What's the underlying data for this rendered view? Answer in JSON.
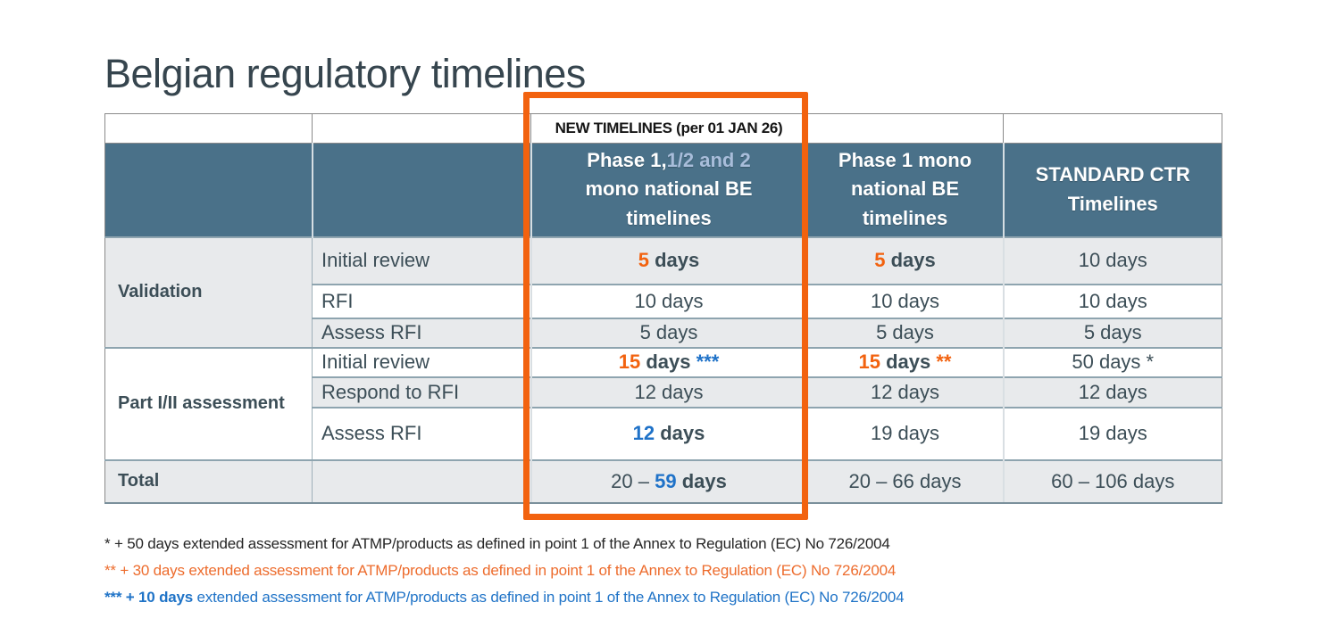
{
  "page": {
    "title": "Belgian regulatory timelines"
  },
  "banner": {
    "label": "NEW TIMELINES (per 01 JAN 26)"
  },
  "columns": {
    "phase12": {
      "part1": "Phase 1,",
      "part2": "1/2 and 2",
      "part3": "mono national BE timelines"
    },
    "phase1": "Phase 1 mono national BE timelines",
    "standard": "STANDARD CTR Timelines"
  },
  "rows": {
    "validation": {
      "group": "Validation",
      "initial": {
        "label": "Initial review",
        "new12_num": "5",
        "new12_unit": "days",
        "new1_num": "5",
        "new1_unit": "days",
        "ctr": "10 days"
      },
      "rfi": {
        "label": "RFI",
        "new12": "10 days",
        "new1": "10 days",
        "ctr": "10 days"
      },
      "assess": {
        "label": "Assess RFI",
        "new12": "5 days",
        "new1": "5 days",
        "ctr": "5 days"
      }
    },
    "part": {
      "group": "Part I/II assessment",
      "initial": {
        "label": "Initial review",
        "new12_num": "15",
        "new12_unit": "days",
        "new12_mark": "***",
        "new1_num": "15",
        "new1_unit": "days",
        "new1_mark": "**",
        "ctr": "50 days *"
      },
      "respond": {
        "label": "Respond to RFI",
        "new12": "12 days",
        "new1": "12 days",
        "ctr": "12 days"
      },
      "assess": {
        "label": "Assess RFI",
        "new12_num": "12",
        "new12_unit": "days",
        "new1": "19 days",
        "ctr": "19 days"
      }
    },
    "total": {
      "group": "Total",
      "new12_prefix": "20 –",
      "new12_num": "59",
      "new12_unit": "days",
      "new1": "20 – 66 days",
      "ctr": "60 – 106 days"
    }
  },
  "footnotes": {
    "fn1": {
      "marker": "*",
      "amount": "+ 50 days",
      "text": "extended assessment for ATMP/products as defined in point 1 of the Annex to Regulation (EC) No 726/2004"
    },
    "fn2": {
      "marker": "**",
      "amount": "+ 30 days",
      "text": "extended assessment for ATMP/products as defined in point 1 of the Annex to Regulation (EC) No 726/2004"
    },
    "fn3": {
      "marker": "***",
      "amount": "+ 10 days",
      "text": "extended assessment for ATMP/products as defined in point 1 of the Annex to Regulation (EC) No 726/2004"
    }
  },
  "colors": {
    "accent_orange": "#F2620F",
    "accent_blue": "#1F72C8",
    "header_bg": "#4A7189",
    "header_light_text": "#A8BDDA",
    "row_alt_bg": "#E8EAEC",
    "table_text": "#3C4E57",
    "footnote_orange": "#ED6C2D",
    "footnote_blue": "#1F73C7"
  }
}
